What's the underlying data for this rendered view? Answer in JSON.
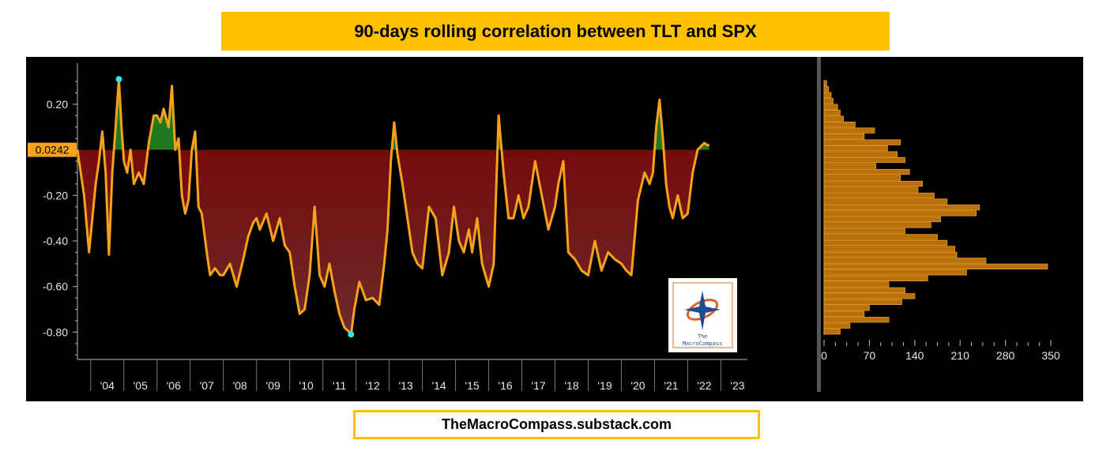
{
  "header": {
    "title": "90-days rolling correlation between TLT and SPX"
  },
  "footer": {
    "url": "TheMacroCompass.substack.com"
  },
  "logo": {
    "line1": "The",
    "line2": "MacroCompass",
    "icon": "compass-star-icon"
  },
  "colors": {
    "banner": "#ffc000",
    "line": "#f7a21a",
    "positive_fill": "#1f7a1f",
    "negative_fill": "#7a0000",
    "marker": "#2ee6e6",
    "hist": "#b8700a"
  },
  "chart_data": [
    {
      "type": "line",
      "title": "90-days rolling correlation between TLT and SPX",
      "xlabel": "",
      "ylabel": "",
      "x_ticks": [
        "'04",
        "'05",
        "'06",
        "'07",
        "'08",
        "'09",
        "'10",
        "'11",
        "'12",
        "'13",
        "'14",
        "'15",
        "'16",
        "'17",
        "'18",
        "'19",
        "'20",
        "'21",
        "'22",
        "'23"
      ],
      "y_ticks": [
        "0.20",
        "-0.20",
        "-0.40",
        "-0.60",
        "-0.80"
      ],
      "xlim": [
        2003.6,
        2023.8
      ],
      "ylim": [
        -0.92,
        0.38
      ],
      "last_value_label": "0.0242",
      "fill_baseline": 0.0,
      "markers": [
        {
          "x": 2004.85,
          "y": 0.31
        },
        {
          "x": 2011.85,
          "y": -0.81
        }
      ],
      "series": [
        {
          "x": [
            2003.6,
            2003.8,
            2003.95,
            2004.05,
            2004.15,
            2004.25,
            2004.35,
            2004.45,
            2004.55,
            2004.65,
            2004.75,
            2004.85,
            2004.92,
            2005.0,
            2005.1,
            2005.2,
            2005.3,
            2005.45,
            2005.6,
            2005.75,
            2005.9,
            2006.0,
            2006.1,
            2006.2,
            2006.35,
            2006.45,
            2006.55,
            2006.65,
            2006.75,
            2006.85,
            2006.95,
            2007.05,
            2007.15,
            2007.25,
            2007.35,
            2007.5,
            2007.6,
            2007.75,
            2007.9,
            2008.0,
            2008.2,
            2008.4,
            2008.6,
            2008.75,
            2008.9,
            2009.0,
            2009.1,
            2009.3,
            2009.5,
            2009.7,
            2009.85,
            2010.0,
            2010.15,
            2010.3,
            2010.45,
            2010.6,
            2010.75,
            2010.9,
            2011.05,
            2011.2,
            2011.35,
            2011.5,
            2011.65,
            2011.8,
            2011.85,
            2011.95,
            2012.1,
            2012.3,
            2012.5,
            2012.7,
            2012.85,
            2012.95,
            2013.05,
            2013.15,
            2013.25,
            2013.4,
            2013.55,
            2013.7,
            2013.85,
            2014.0,
            2014.2,
            2014.4,
            2014.6,
            2014.8,
            2014.95,
            2015.1,
            2015.25,
            2015.4,
            2015.5,
            2015.65,
            2015.8,
            2016.0,
            2016.15,
            2016.3,
            2016.45,
            2016.6,
            2016.75,
            2016.9,
            2017.05,
            2017.2,
            2017.4,
            2017.6,
            2017.8,
            2018.0,
            2018.1,
            2018.25,
            2018.4,
            2018.6,
            2018.8,
            2019.0,
            2019.2,
            2019.4,
            2019.6,
            2019.8,
            2020.0,
            2020.15,
            2020.3,
            2020.5,
            2020.7,
            2020.85,
            2020.95,
            2021.05,
            2021.15,
            2021.25,
            2021.35,
            2021.45,
            2021.55,
            2021.7,
            2021.85,
            2022.0,
            2022.15,
            2022.3,
            2022.5,
            2022.6,
            2022.65
          ],
          "values": [
            0.0,
            -0.2,
            -0.45,
            -0.3,
            -0.15,
            -0.05,
            0.08,
            -0.1,
            -0.46,
            -0.1,
            0.1,
            0.31,
            0.12,
            -0.05,
            -0.1,
            0.0,
            -0.15,
            -0.1,
            -0.15,
            0.03,
            0.15,
            0.15,
            0.12,
            0.18,
            0.1,
            0.28,
            0.0,
            0.05,
            -0.2,
            -0.28,
            -0.22,
            0.0,
            0.08,
            -0.25,
            -0.28,
            -0.45,
            -0.55,
            -0.52,
            -0.55,
            -0.55,
            -0.5,
            -0.6,
            -0.48,
            -0.38,
            -0.32,
            -0.3,
            -0.35,
            -0.28,
            -0.4,
            -0.3,
            -0.42,
            -0.45,
            -0.6,
            -0.72,
            -0.7,
            -0.55,
            -0.25,
            -0.55,
            -0.6,
            -0.5,
            -0.62,
            -0.72,
            -0.78,
            -0.8,
            -0.81,
            -0.7,
            -0.58,
            -0.66,
            -0.65,
            -0.68,
            -0.5,
            -0.35,
            -0.05,
            0.12,
            -0.02,
            -0.15,
            -0.3,
            -0.45,
            -0.5,
            -0.52,
            -0.25,
            -0.3,
            -0.55,
            -0.45,
            -0.25,
            -0.4,
            -0.45,
            -0.35,
            -0.45,
            -0.3,
            -0.5,
            -0.6,
            -0.5,
            0.15,
            -0.1,
            -0.3,
            -0.3,
            -0.2,
            -0.3,
            -0.25,
            -0.05,
            -0.2,
            -0.35,
            -0.25,
            -0.15,
            -0.05,
            -0.45,
            -0.48,
            -0.53,
            -0.55,
            -0.4,
            -0.53,
            -0.45,
            -0.48,
            -0.5,
            -0.53,
            -0.55,
            -0.22,
            -0.1,
            -0.15,
            -0.1,
            0.1,
            0.22,
            0.05,
            -0.15,
            -0.25,
            -0.3,
            -0.2,
            -0.3,
            -0.28,
            -0.1,
            0.0,
            0.03,
            0.02,
            0.02
          ]
        }
      ]
    },
    {
      "type": "bar",
      "orientation": "horizontal",
      "x_ticks": [
        "0",
        "70",
        "140",
        "210",
        "280",
        "350"
      ],
      "xlim": [
        0,
        350
      ],
      "values": [
        4,
        7,
        11,
        14,
        21,
        25,
        30,
        48,
        78,
        62,
        118,
        98,
        113,
        125,
        80,
        132,
        118,
        152,
        145,
        170,
        190,
        240,
        235,
        180,
        165,
        125,
        175,
        190,
        202,
        205,
        250,
        345,
        220,
        160,
        100,
        125,
        140,
        120,
        70,
        62,
        100,
        40,
        25
      ]
    }
  ]
}
